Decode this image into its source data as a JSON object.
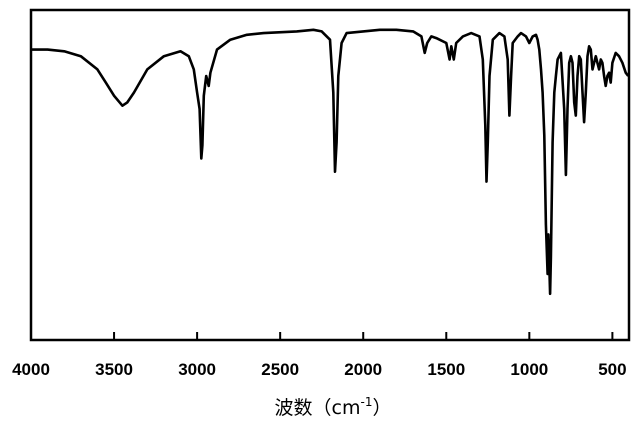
{
  "chart_data": {
    "type": "line",
    "title": "",
    "xlabel_main": "波数（cm",
    "xlabel_sup": "-1",
    "xlabel_close": "）",
    "ylabel": "",
    "xlim": [
      4000,
      400
    ],
    "x_reversed": true,
    "grid": false,
    "legend": "none",
    "x_ticks": [
      4000,
      3500,
      3000,
      2500,
      2000,
      1500,
      1000,
      500
    ],
    "x_tick_labels": [
      "4000",
      "3500",
      "3000",
      "2500",
      "2000",
      "1500",
      "1000",
      "500"
    ],
    "series": [
      {
        "color": "#000000",
        "points": [
          [
            4000,
            88
          ],
          [
            3900,
            88
          ],
          [
            3800,
            87.5
          ],
          [
            3700,
            86
          ],
          [
            3600,
            82
          ],
          [
            3550,
            78
          ],
          [
            3500,
            74
          ],
          [
            3450,
            71
          ],
          [
            3420,
            72
          ],
          [
            3380,
            75
          ],
          [
            3300,
            82
          ],
          [
            3200,
            86
          ],
          [
            3100,
            87.5
          ],
          [
            3050,
            86
          ],
          [
            3020,
            82
          ],
          [
            3000,
            75
          ],
          [
            2985,
            70
          ],
          [
            2975,
            55
          ],
          [
            2968,
            59
          ],
          [
            2960,
            74
          ],
          [
            2945,
            80
          ],
          [
            2930,
            77
          ],
          [
            2920,
            81
          ],
          [
            2880,
            88
          ],
          [
            2800,
            91
          ],
          [
            2700,
            92.5
          ],
          [
            2600,
            93
          ],
          [
            2400,
            93.5
          ],
          [
            2300,
            94
          ],
          [
            2250,
            93.5
          ],
          [
            2200,
            91
          ],
          [
            2180,
            75
          ],
          [
            2170,
            51
          ],
          [
            2160,
            60
          ],
          [
            2150,
            80
          ],
          [
            2130,
            90
          ],
          [
            2100,
            93
          ],
          [
            2000,
            93.5
          ],
          [
            1900,
            94
          ],
          [
            1800,
            94
          ],
          [
            1700,
            93.5
          ],
          [
            1650,
            92
          ],
          [
            1630,
            87
          ],
          [
            1615,
            90
          ],
          [
            1590,
            92
          ],
          [
            1560,
            91.5
          ],
          [
            1500,
            90
          ],
          [
            1480,
            85
          ],
          [
            1470,
            89
          ],
          [
            1455,
            85
          ],
          [
            1440,
            90
          ],
          [
            1400,
            92
          ],
          [
            1350,
            93
          ],
          [
            1300,
            92
          ],
          [
            1280,
            85
          ],
          [
            1265,
            65
          ],
          [
            1258,
            48
          ],
          [
            1250,
            60
          ],
          [
            1240,
            80
          ],
          [
            1220,
            91
          ],
          [
            1180,
            93
          ],
          [
            1150,
            92
          ],
          [
            1130,
            85
          ],
          [
            1120,
            68
          ],
          [
            1110,
            80
          ],
          [
            1100,
            90
          ],
          [
            1070,
            92
          ],
          [
            1050,
            93
          ],
          [
            1020,
            92
          ],
          [
            1000,
            90
          ],
          [
            980,
            92
          ],
          [
            960,
            92.5
          ],
          [
            950,
            91
          ],
          [
            940,
            88
          ],
          [
            930,
            82
          ],
          [
            920,
            75
          ],
          [
            910,
            62
          ],
          [
            900,
            35
          ],
          [
            890,
            20
          ],
          [
            885,
            32
          ],
          [
            875,
            14
          ],
          [
            870,
            25
          ],
          [
            860,
            60
          ],
          [
            850,
            75
          ],
          [
            840,
            80
          ],
          [
            830,
            85
          ],
          [
            810,
            87
          ],
          [
            790,
            70
          ],
          [
            780,
            50
          ],
          [
            770,
            70
          ],
          [
            760,
            84
          ],
          [
            750,
            86
          ],
          [
            740,
            84
          ],
          [
            730,
            72
          ],
          [
            720,
            68
          ],
          [
            710,
            80
          ],
          [
            700,
            86
          ],
          [
            690,
            85
          ],
          [
            680,
            75
          ],
          [
            670,
            66
          ],
          [
            660,
            75
          ],
          [
            650,
            86
          ],
          [
            640,
            89
          ],
          [
            630,
            88
          ],
          [
            620,
            82
          ],
          [
            610,
            84
          ],
          [
            600,
            86
          ],
          [
            590,
            84
          ],
          [
            580,
            82
          ],
          [
            570,
            85
          ],
          [
            560,
            84
          ],
          [
            550,
            80
          ],
          [
            540,
            77
          ],
          [
            530,
            80
          ],
          [
            520,
            81
          ],
          [
            510,
            78
          ],
          [
            500,
            84
          ],
          [
            480,
            87
          ],
          [
            460,
            86
          ],
          [
            440,
            84
          ],
          [
            420,
            81
          ],
          [
            405,
            80
          ]
        ]
      }
    ]
  }
}
